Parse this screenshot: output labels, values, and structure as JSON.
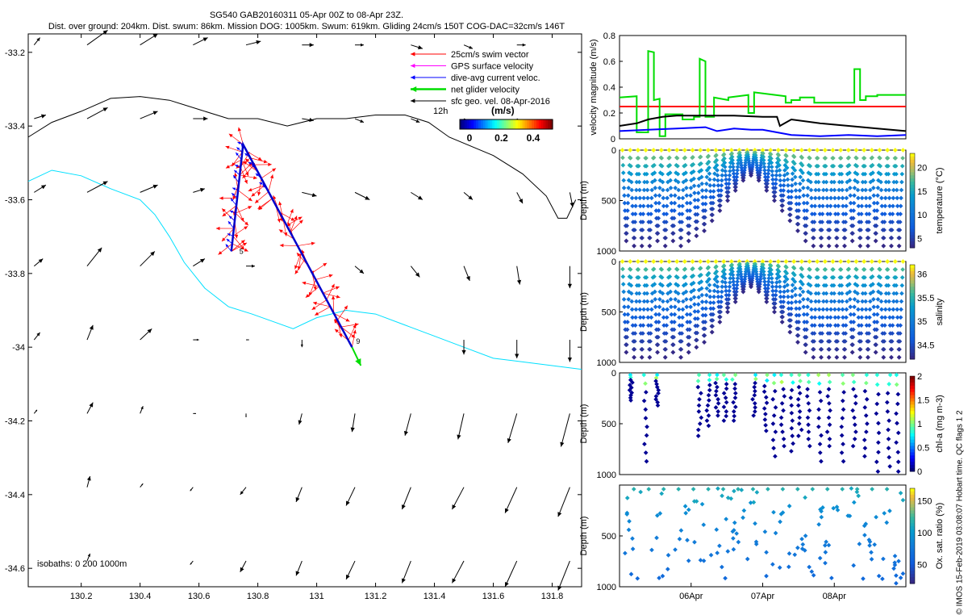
{
  "header": {
    "line1": "SG540 GAB20160311 05-Apr 00Z to 08-Apr 23Z.",
    "line2": "Dist. over ground: 204km. Dist. swum: 86km. Mission DOG: 1005km. Swum: 619km. Gliding 24cm/s 150T COG-DAC=32cm/s 146T"
  },
  "side_note": "© IMOS 15-Feb-2019 03:08:07 Hobart time. QC flags 1  2",
  "colors": {
    "swim": "#ff0000",
    "gps": "#ff00ff",
    "dac": "#0000ff",
    "net": "#00dd00",
    "geo": "#000000",
    "isobath_200": "#00e0ff",
    "isobath_1000": "#000000",
    "threshold": "#ff0000"
  },
  "chart_data": [
    {
      "type": "scatter",
      "title": "map",
      "x": [
        130.02,
        131.9
      ],
      "y": [
        -34.65,
        -33.15
      ],
      "xticks": [
        "130.2",
        "130.4",
        "130.6",
        "130.8",
        "131",
        "131.2",
        "131.4",
        "131.6",
        "131.8"
      ],
      "yticks": [
        "-33.2",
        "-33.4",
        "-33.6",
        "-33.8",
        "-34",
        "-34.2",
        "-34.4",
        "-34.6"
      ],
      "legend": {
        "items": [
          "25cm/s swim vector",
          "GPS surface velocity",
          "dive-avg current veloc.",
          "net glider velocity",
          "sfc geo. vel. 08-Apr-2016"
        ],
        "time_label": "12h",
        "units": "(m/s)",
        "colorbar_ticks": [
          "0",
          "0.2",
          "0.4"
        ],
        "placement": "top-right"
      },
      "isobath_label": "isobaths: 0   200   1000m",
      "track_labels": [
        "5",
        "9"
      ],
      "track": {
        "start": [
          130.71,
          -33.74
        ],
        "turn": [
          130.75,
          -33.45
        ],
        "end": [
          131.12,
          -34.0
        ],
        "net_velocity_end": [
          131.15,
          -34.05
        ]
      },
      "isobath_1000": [
        [
          130.02,
          -33.43
        ],
        [
          130.1,
          -33.39
        ],
        [
          130.2,
          -33.36
        ],
        [
          130.3,
          -33.325
        ],
        [
          130.4,
          -33.32
        ],
        [
          130.5,
          -33.33
        ],
        [
          130.6,
          -33.355
        ],
        [
          130.7,
          -33.38
        ],
        [
          130.8,
          -33.38
        ],
        [
          130.9,
          -33.4
        ],
        [
          131.0,
          -33.38
        ],
        [
          131.1,
          -33.38
        ],
        [
          131.2,
          -33.37
        ],
        [
          131.3,
          -33.37
        ],
        [
          131.38,
          -33.39
        ],
        [
          131.45,
          -33.43
        ],
        [
          131.6,
          -33.48
        ],
        [
          131.7,
          -33.53
        ],
        [
          131.78,
          -33.59
        ],
        [
          131.82,
          -33.65
        ],
        [
          131.85,
          -33.65
        ],
        [
          131.88,
          -33.6
        ]
      ],
      "isobath_200": [
        [
          130.02,
          -33.55
        ],
        [
          130.1,
          -33.52
        ],
        [
          130.2,
          -33.535
        ],
        [
          130.3,
          -33.57
        ],
        [
          130.4,
          -33.6
        ],
        [
          130.45,
          -33.64
        ],
        [
          130.5,
          -33.7
        ],
        [
          130.55,
          -33.77
        ],
        [
          130.62,
          -33.84
        ],
        [
          130.7,
          -33.89
        ],
        [
          130.78,
          -33.91
        ],
        [
          130.85,
          -33.93
        ],
        [
          130.92,
          -33.95
        ],
        [
          131.0,
          -33.92
        ],
        [
          131.1,
          -33.9
        ],
        [
          131.2,
          -33.91
        ],
        [
          131.3,
          -33.94
        ],
        [
          131.4,
          -33.97
        ],
        [
          131.5,
          -34.0
        ],
        [
          131.6,
          -34.03
        ],
        [
          131.7,
          -34.04
        ],
        [
          131.8,
          -34.05
        ],
        [
          131.9,
          -34.06
        ]
      ],
      "vectors": [
        [
          130.04,
          -33.18,
          0.02,
          0.02
        ],
        [
          130.22,
          -33.18,
          0.07,
          0.04
        ],
        [
          130.4,
          -33.18,
          0.06,
          0.03
        ],
        [
          130.58,
          -33.18,
          0.05,
          0.02
        ],
        [
          130.76,
          -33.18,
          0.05,
          0.01
        ],
        [
          130.95,
          -33.18,
          0.04,
          0.0
        ],
        [
          131.13,
          -33.18,
          0.03,
          0.0
        ],
        [
          131.32,
          -33.18,
          0.04,
          -0.01
        ],
        [
          131.5,
          -33.18,
          0.03,
          -0.01
        ],
        [
          131.68,
          -33.18,
          0.03,
          0.0
        ],
        [
          130.04,
          -33.38,
          0.04,
          0.01
        ],
        [
          130.22,
          -33.38,
          0.07,
          0.03
        ],
        [
          130.4,
          -33.38,
          0.06,
          0.02
        ],
        [
          130.58,
          -33.38,
          0.05,
          0.0
        ],
        [
          130.95,
          -33.38,
          0.04,
          -0.005
        ],
        [
          131.13,
          -33.38,
          0.03,
          -0.01
        ],
        [
          131.32,
          -33.38,
          0.03,
          -0.01
        ],
        [
          131.5,
          -33.38,
          0.03,
          -0.01
        ],
        [
          131.68,
          -33.38,
          0.03,
          -0.015
        ],
        [
          130.04,
          -33.58,
          0.04,
          0.02
        ],
        [
          130.22,
          -33.58,
          0.07,
          0.03
        ],
        [
          130.4,
          -33.58,
          0.06,
          0.02
        ],
        [
          130.58,
          -33.58,
          0.04,
          0.01
        ],
        [
          130.95,
          -33.58,
          0.05,
          -0.01
        ],
        [
          131.13,
          -33.58,
          0.05,
          -0.02
        ],
        [
          131.32,
          -33.58,
          0.04,
          -0.02
        ],
        [
          131.5,
          -33.58,
          0.03,
          -0.02
        ],
        [
          131.68,
          -33.58,
          0.02,
          -0.03
        ],
        [
          131.86,
          -33.58,
          0.01,
          -0.04
        ],
        [
          130.04,
          -33.78,
          0.03,
          0.02
        ],
        [
          130.22,
          -33.78,
          0.05,
          0.05
        ],
        [
          130.4,
          -33.78,
          0.05,
          0.04
        ],
        [
          130.58,
          -33.78,
          0.04,
          0.02
        ],
        [
          130.76,
          -33.78,
          0.03,
          0.0
        ],
        [
          131.13,
          -33.78,
          0.03,
          -0.02
        ],
        [
          131.32,
          -33.78,
          0.03,
          -0.03
        ],
        [
          131.5,
          -33.78,
          0.02,
          -0.04
        ],
        [
          131.68,
          -33.78,
          0.01,
          -0.05
        ],
        [
          131.86,
          -33.78,
          0.0,
          -0.06
        ],
        [
          130.04,
          -33.98,
          0.02,
          0.02
        ],
        [
          130.22,
          -33.98,
          0.02,
          0.04
        ],
        [
          130.4,
          -33.98,
          0.04,
          0.03
        ],
        [
          130.58,
          -33.98,
          0.02,
          0.0
        ],
        [
          130.76,
          -33.98,
          0.01,
          0.0
        ],
        [
          130.95,
          -33.98,
          0.0,
          -0.02
        ],
        [
          131.5,
          -33.98,
          0.0,
          -0.04
        ],
        [
          131.68,
          -33.98,
          0.0,
          -0.05
        ],
        [
          131.86,
          -33.98,
          0.0,
          -0.06
        ],
        [
          130.04,
          -34.18,
          0.01,
          0.01
        ],
        [
          130.22,
          -34.18,
          0.02,
          0.03
        ],
        [
          130.4,
          -34.18,
          0.01,
          0.02
        ],
        [
          130.58,
          -34.18,
          0.01,
          0.0
        ],
        [
          130.76,
          -34.18,
          0.0,
          -0.01
        ],
        [
          130.95,
          -34.18,
          -0.01,
          -0.03
        ],
        [
          131.13,
          -34.18,
          -0.01,
          -0.05
        ],
        [
          131.32,
          -34.18,
          -0.02,
          -0.06
        ],
        [
          131.5,
          -34.18,
          -0.02,
          -0.07
        ],
        [
          131.68,
          -34.18,
          -0.03,
          -0.08
        ],
        [
          131.86,
          -34.18,
          -0.03,
          -0.09
        ],
        [
          130.22,
          -34.38,
          0.01,
          0.03
        ],
        [
          130.4,
          -34.38,
          0.01,
          0.01
        ],
        [
          130.58,
          -34.38,
          -0.01,
          -0.01
        ],
        [
          130.76,
          -34.38,
          -0.02,
          -0.02
        ],
        [
          130.95,
          -34.38,
          -0.02,
          -0.04
        ],
        [
          131.13,
          -34.38,
          -0.03,
          -0.05
        ],
        [
          131.32,
          -34.38,
          -0.03,
          -0.06
        ],
        [
          131.5,
          -34.38,
          -0.04,
          -0.06
        ],
        [
          131.68,
          -34.38,
          -0.04,
          -0.07
        ],
        [
          131.86,
          -34.38,
          -0.04,
          -0.08
        ],
        [
          130.22,
          -34.58,
          0.01,
          0.02
        ],
        [
          130.58,
          -34.58,
          -0.01,
          -0.01
        ],
        [
          130.76,
          -34.58,
          -0.02,
          -0.03
        ],
        [
          130.95,
          -34.58,
          -0.02,
          -0.04
        ],
        [
          131.13,
          -34.58,
          -0.03,
          -0.05
        ],
        [
          131.32,
          -34.58,
          -0.03,
          -0.06
        ],
        [
          131.5,
          -34.58,
          -0.04,
          -0.06
        ],
        [
          131.68,
          -34.58,
          -0.04,
          -0.07
        ],
        [
          131.86,
          -34.58,
          -0.04,
          -0.08
        ]
      ]
    },
    {
      "type": "line",
      "ylabel": "velocity magnitude (m/s)",
      "ylim": [
        0,
        0.8
      ],
      "yticks": [
        "0",
        "0.2",
        "0.4",
        "0.6",
        "0.8"
      ],
      "threshold": 0.25,
      "series": [
        {
          "color": "#00dd00",
          "x": [
            0,
            0.06,
            0.06,
            0.1,
            0.1,
            0.12,
            0.12,
            0.14,
            0.14,
            0.16,
            0.16,
            0.22,
            0.22,
            0.26,
            0.26,
            0.28,
            0.28,
            0.3,
            0.3,
            0.33,
            0.33,
            0.38,
            0.38,
            0.45,
            0.45,
            0.47,
            0.47,
            0.58,
            0.58,
            0.6,
            0.6,
            0.63,
            0.63,
            0.68,
            0.68,
            0.82,
            0.82,
            0.84,
            0.84,
            0.86,
            0.86,
            0.9,
            0.9,
            0.98,
            0.98,
            1.0
          ],
          "y": [
            0.32,
            0.33,
            0.05,
            0.05,
            0.68,
            0.67,
            0.3,
            0.31,
            0.02,
            0.02,
            0.19,
            0.19,
            0.15,
            0.15,
            0.17,
            0.17,
            0.62,
            0.6,
            0.17,
            0.17,
            0.32,
            0.3,
            0.32,
            0.34,
            0.2,
            0.2,
            0.36,
            0.33,
            0.28,
            0.28,
            0.3,
            0.3,
            0.32,
            0.32,
            0.28,
            0.28,
            0.54,
            0.54,
            0.3,
            0.3,
            0.33,
            0.33,
            0.34,
            0.34,
            0.34,
            0.34
          ]
        },
        {
          "color": "#000000",
          "x": [
            0,
            0.06,
            0.1,
            0.15,
            0.2,
            0.3,
            0.4,
            0.5,
            0.55,
            0.56,
            0.6,
            0.7,
            0.8,
            0.9,
            1.0
          ],
          "y": [
            0.1,
            0.12,
            0.15,
            0.17,
            0.18,
            0.18,
            0.18,
            0.17,
            0.17,
            0.1,
            0.15,
            0.12,
            0.1,
            0.08,
            0.06
          ]
        },
        {
          "color": "#0000ff",
          "x": [
            0,
            0.1,
            0.2,
            0.3,
            0.34,
            0.4,
            0.46,
            0.5,
            0.55,
            0.6,
            0.7,
            0.8,
            0.9,
            1.0
          ],
          "y": [
            0.06,
            0.07,
            0.08,
            0.09,
            0.06,
            0.08,
            0.07,
            0.07,
            0.05,
            0.03,
            0.02,
            0.03,
            0.02,
            0.03
          ]
        }
      ]
    },
    {
      "type": "scatter",
      "ylabel": "Depth (m)",
      "colorbar_label": "temperature (°C)",
      "ylim": [
        1000,
        0
      ],
      "yticks": [
        "0",
        "500",
        "1000"
      ],
      "cticks": [
        "5",
        "10",
        "15",
        "20"
      ],
      "clim": [
        3,
        23
      ],
      "dives": 36,
      "max_depth": [
        0.9,
        0.95,
        0.95,
        0.95,
        0.9,
        0.95,
        0.9,
        0.95,
        0.9,
        0.85,
        0.8,
        0.7,
        0.6,
        0.5,
        0.4,
        0.3,
        0.25,
        0.3,
        0.4,
        0.5,
        0.6,
        0.7,
        0.8,
        0.9,
        0.95,
        0.95,
        0.95,
        0.95,
        0.95,
        0.9,
        0.95,
        0.95,
        0.9,
        0.95,
        0.95,
        0.95
      ]
    },
    {
      "type": "scatter",
      "ylabel": "Depth (m)",
      "colorbar_label": "salinity",
      "ylim": [
        1000,
        0
      ],
      "yticks": [
        "0",
        "500",
        "1000"
      ],
      "cticks": [
        "34.5",
        "35",
        "35.5",
        "36"
      ],
      "clim": [
        34.2,
        36.2
      ],
      "dives": 36,
      "max_depth": [
        0.9,
        0.95,
        0.95,
        0.95,
        0.9,
        0.95,
        0.9,
        0.95,
        0.9,
        0.85,
        0.8,
        0.7,
        0.6,
        0.5,
        0.4,
        0.3,
        0.25,
        0.3,
        0.4,
        0.5,
        0.6,
        0.7,
        0.8,
        0.9,
        0.95,
        0.95,
        0.95,
        0.95,
        0.95,
        0.9,
        0.95,
        0.95,
        0.9,
        0.95,
        0.95,
        0.95
      ]
    },
    {
      "type": "scatter",
      "ylabel": "Depth (m)",
      "colorbar_label": "chl-a (mg m-3)",
      "ylim": [
        1000,
        0
      ],
      "yticks": [
        "0",
        "500",
        "1000"
      ],
      "cticks": [
        "0",
        "0.5",
        "1",
        "1.5",
        "2"
      ],
      "clim": [
        0,
        2
      ],
      "profiles": [
        [
          0.04,
          0.25
        ],
        [
          0.09,
          0.85
        ],
        [
          0.13,
          0.3
        ],
        [
          0.28,
          0.6
        ],
        [
          0.31,
          0.5
        ],
        [
          0.34,
          0.4
        ],
        [
          0.37,
          0.45
        ],
        [
          0.4,
          0.45
        ],
        [
          0.47,
          0.4
        ],
        [
          0.51,
          0.55
        ],
        [
          0.54,
          0.8
        ],
        [
          0.57,
          0.7
        ],
        [
          0.6,
          0.75
        ],
        [
          0.63,
          0.6
        ],
        [
          0.66,
          0.7
        ],
        [
          0.7,
          0.85
        ],
        [
          0.73,
          0.7
        ],
        [
          0.78,
          0.85
        ],
        [
          0.82,
          0.7
        ],
        [
          0.86,
          0.8
        ],
        [
          0.9,
          0.95
        ],
        [
          0.94,
          0.9
        ],
        [
          0.97,
          0.95
        ]
      ]
    },
    {
      "type": "scatter",
      "ylabel": "Depth (m)",
      "colorbar_label": "Ox. sat. ratio (%)",
      "ylim": [
        1000,
        0
      ],
      "yticks": [
        "500",
        "1000"
      ],
      "cticks": [
        "50",
        "100",
        "150"
      ],
      "clim": [
        20,
        170
      ],
      "xticks": [
        "06Apr",
        "07Apr",
        "08Apr"
      ],
      "xtick_positions": [
        0.25,
        0.5,
        0.75
      ]
    }
  ]
}
